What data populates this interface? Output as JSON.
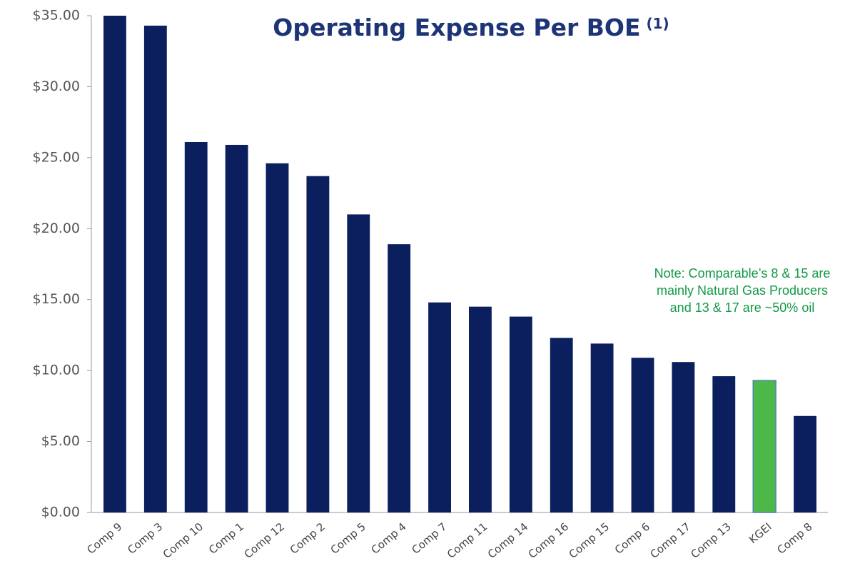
{
  "chart_data": {
    "type": "bar",
    "title": "Operating Expense Per BOE",
    "title_note": "(1)",
    "annotation": [
      "Note: Comparable’s 8 & 15 are",
      "mainly Natural Gas Producers",
      "and 13 & 17 are ~50% oil"
    ],
    "categories": [
      "Comp 9",
      "Comp 3",
      "Comp 10",
      "Comp 1",
      "Comp 12",
      "Comp 2",
      "Comp 5",
      "Comp 4",
      "Comp 7",
      "Comp 11",
      "Comp 14",
      "Comp 16",
      "Comp 15",
      "Comp 6",
      "Comp 17",
      "Comp 13",
      "KGEI",
      "Comp 8"
    ],
    "values": [
      35.0,
      34.3,
      26.1,
      25.9,
      24.6,
      23.7,
      21.0,
      18.9,
      14.8,
      14.5,
      13.8,
      12.3,
      11.9,
      10.9,
      10.6,
      9.6,
      9.3,
      6.8
    ],
    "colors": [
      "#0b1f5e",
      "#0b1f5e",
      "#0b1f5e",
      "#0b1f5e",
      "#0b1f5e",
      "#0b1f5e",
      "#0b1f5e",
      "#0b1f5e",
      "#0b1f5e",
      "#0b1f5e",
      "#0b1f5e",
      "#0b1f5e",
      "#0b1f5e",
      "#0b1f5e",
      "#0b1f5e",
      "#0b1f5e",
      "#4cb848",
      "#0b1f5e"
    ],
    "ylim": [
      0,
      35
    ],
    "yticks": [
      {
        "value": 0,
        "label": "$0.00"
      },
      {
        "value": 5,
        "label": "$5.00"
      },
      {
        "value": 10,
        "label": "$10.00"
      },
      {
        "value": 15,
        "label": "$15.00"
      },
      {
        "value": 20,
        "label": "$20.00"
      },
      {
        "value": 25,
        "label": "$25.00"
      },
      {
        "value": 30,
        "label": "$30.00"
      },
      {
        "value": 35,
        "label": "$35.00"
      }
    ],
    "grid": false
  }
}
